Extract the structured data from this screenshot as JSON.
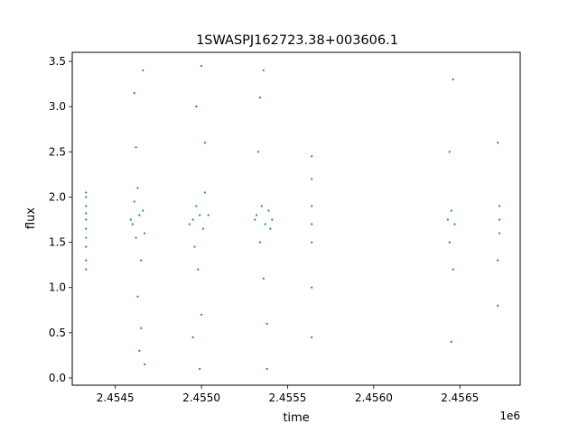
{
  "chart_data": {
    "type": "scatter",
    "title": "1SWASPJ162723.38+003606.1",
    "xlabel": "time",
    "ylabel": "flux",
    "x_offset_label": "1e6",
    "xlim": [
      2.45425,
      2.45685
    ],
    "ylim": [
      -0.08,
      3.6
    ],
    "xticks": [
      2.4545,
      2.455,
      2.4555,
      2.456,
      2.4565
    ],
    "xtick_labels": [
      "2.4545",
      "2.4550",
      "2.4555",
      "2.4560",
      "2.4565"
    ],
    "yticks": [
      0.0,
      0.5,
      1.0,
      1.5,
      2.0,
      2.5,
      3.0,
      3.5
    ],
    "ytick_labels": [
      "0.0",
      "0.5",
      "1.0",
      "1.5",
      "2.0",
      "2.5",
      "3.0",
      "3.5"
    ],
    "grid": false,
    "marker_color": "#1f77b4",
    "series": [
      {
        "x": [
          2.45433,
          2.45433,
          2.45433,
          2.45433,
          2.45433,
          2.45433,
          2.45433,
          2.45433,
          2.45433,
          2.45433
        ],
        "y": [
          1.2,
          1.3,
          1.45,
          1.55,
          1.65,
          1.75,
          1.82,
          1.9,
          2.0,
          2.05
        ]
      },
      {
        "x": [
          2.45459,
          2.4546,
          2.45461,
          2.45462,
          2.45463,
          2.45464,
          2.45465,
          2.45466,
          2.45467,
          2.45462,
          2.45464,
          2.45466,
          2.45463,
          2.45465,
          2.45461,
          2.45467
        ],
        "y": [
          1.75,
          1.7,
          1.95,
          1.55,
          0.9,
          1.8,
          0.55,
          1.85,
          1.6,
          2.55,
          0.3,
          3.4,
          2.1,
          1.3,
          3.15,
          0.15
        ]
      },
      {
        "x": [
          2.45493,
          2.45495,
          2.45496,
          2.45497,
          2.45498,
          2.45499,
          2.455,
          2.45501,
          2.45502,
          2.45504,
          2.45497,
          2.455,
          2.45499,
          2.45502,
          2.45495
        ],
        "y": [
          1.7,
          1.75,
          1.45,
          1.9,
          1.2,
          1.8,
          0.7,
          1.65,
          2.05,
          1.8,
          3.0,
          3.45,
          0.1,
          2.6,
          0.45
        ]
      },
      {
        "x": [
          2.45531,
          2.45532,
          2.45534,
          2.45535,
          2.45536,
          2.45537,
          2.45538,
          2.45539,
          2.4554,
          2.45541,
          2.45534,
          2.45536,
          2.45538,
          2.45533
        ],
        "y": [
          1.75,
          1.8,
          1.5,
          1.9,
          1.1,
          1.7,
          0.6,
          1.85,
          1.65,
          1.75,
          3.1,
          3.4,
          0.1,
          2.5
        ]
      },
      {
        "x": [
          2.45564,
          2.45564,
          2.45564,
          2.45564,
          2.45564,
          2.45564,
          2.45564
        ],
        "y": [
          0.45,
          1.0,
          1.5,
          1.7,
          1.9,
          2.2,
          2.45
        ]
      },
      {
        "x": [
          2.45643,
          2.45644,
          2.45645,
          2.45646,
          2.45647,
          2.45645,
          2.45646,
          2.45644
        ],
        "y": [
          1.75,
          1.5,
          1.85,
          1.2,
          1.7,
          0.4,
          3.3,
          2.5
        ]
      },
      {
        "x": [
          2.45672,
          2.45672,
          2.45673,
          2.45673,
          2.45673,
          2.45672
        ],
        "y": [
          0.8,
          1.3,
          1.6,
          1.75,
          1.9,
          2.6
        ]
      }
    ]
  }
}
